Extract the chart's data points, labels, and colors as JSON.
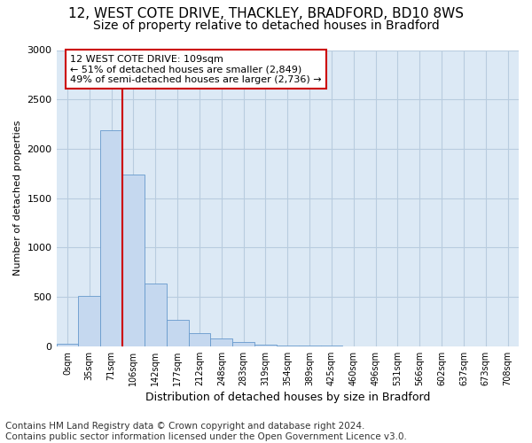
{
  "title1": "12, WEST COTE DRIVE, THACKLEY, BRADFORD, BD10 8WS",
  "title2": "Size of property relative to detached houses in Bradford",
  "xlabel": "Distribution of detached houses by size in Bradford",
  "ylabel": "Number of detached properties",
  "bar_labels": [
    "0sqm",
    "35sqm",
    "71sqm",
    "106sqm",
    "142sqm",
    "177sqm",
    "212sqm",
    "248sqm",
    "283sqm",
    "319sqm",
    "354sqm",
    "389sqm",
    "425sqm",
    "460sqm",
    "496sqm",
    "531sqm",
    "566sqm",
    "602sqm",
    "637sqm",
    "673sqm",
    "708sqm"
  ],
  "bar_values": [
    28,
    510,
    2190,
    1740,
    635,
    265,
    130,
    75,
    45,
    18,
    8,
    3,
    3,
    0,
    0,
    0,
    0,
    0,
    0,
    0,
    0
  ],
  "bar_color": "#c5d8ef",
  "bar_edge_color": "#6699cc",
  "vline_x": 3,
  "vline_color": "#cc0000",
  "annotation_text": "12 WEST COTE DRIVE: 109sqm\n← 51% of detached houses are smaller (2,849)\n49% of semi-detached houses are larger (2,736) →",
  "annotation_box_color": "#ffffff",
  "annotation_box_edge": "#cc0000",
  "ylim": [
    0,
    3000
  ],
  "yticks": [
    0,
    500,
    1000,
    1500,
    2000,
    2500,
    3000
  ],
  "footnote": "Contains HM Land Registry data © Crown copyright and database right 2024.\nContains public sector information licensed under the Open Government Licence v3.0.",
  "bg_color": "#ffffff",
  "plot_bg_color": "#dce9f5",
  "grid_color": "#b8ccdf",
  "title1_fontsize": 11,
  "title2_fontsize": 10,
  "xlabel_fontsize": 9,
  "ylabel_fontsize": 8,
  "footnote_fontsize": 7.5
}
